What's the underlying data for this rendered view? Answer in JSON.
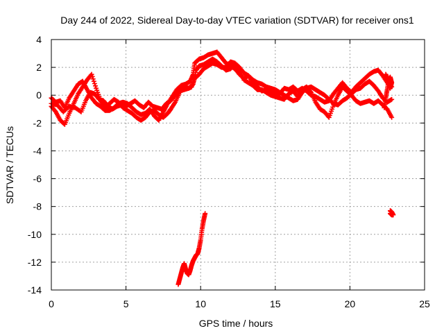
{
  "chart_data": {
    "type": "scatter",
    "title": "Day 244 of 2022, Sidereal Day-to-day VTEC variation (SDTVAR) for receiver ons1",
    "xlabel": "GPS time / hours",
    "ylabel": "SDTVAR / TECUs",
    "xlim": [
      0,
      25
    ],
    "ylim": [
      -14,
      4
    ],
    "xticks": [
      "0",
      "5",
      "10",
      "15",
      "20",
      "25"
    ],
    "yticks": [
      "4",
      "2",
      "0",
      "-2",
      "-4",
      "-6",
      "-8",
      "-10",
      "-12",
      "-14"
    ],
    "grid": true,
    "marker": "+",
    "series": [
      {
        "name": "SDTVAR",
        "color": "#ff0000",
        "segments": [
          [
            [
              0.0,
              -0.8
            ],
            [
              0.3,
              -1.2
            ],
            [
              0.6,
              -1.8
            ],
            [
              0.9,
              -2.1
            ],
            [
              1.2,
              -1.3
            ],
            [
              1.5,
              -0.6
            ],
            [
              1.8,
              0.1
            ],
            [
              2.1,
              0.6
            ],
            [
              2.4,
              1.1
            ],
            [
              2.7,
              1.5
            ],
            [
              3.0,
              0.5
            ],
            [
              3.3,
              -0.4
            ],
            [
              3.6,
              -0.9
            ],
            [
              3.9,
              -0.6
            ],
            [
              4.2,
              -0.3
            ],
            [
              4.5,
              -0.5
            ],
            [
              4.8,
              -0.9
            ],
            [
              5.1,
              -1.1
            ],
            [
              5.4,
              -1.3
            ],
            [
              5.7,
              -1.6
            ],
            [
              6.0,
              -1.8
            ],
            [
              6.3,
              -1.6
            ],
            [
              6.6,
              -1.2
            ],
            [
              6.9,
              -1.1
            ],
            [
              7.2,
              -1.4
            ],
            [
              7.5,
              -1.6
            ],
            [
              7.8,
              -1.3
            ],
            [
              8.0,
              -1.0
            ],
            [
              8.3,
              -0.5
            ],
            [
              8.6,
              0.2
            ],
            [
              8.9,
              0.6
            ],
            [
              9.2,
              0.5
            ],
            [
              9.5,
              0.8
            ],
            [
              9.7,
              1.8
            ],
            [
              9.9,
              2.1
            ],
            [
              10.2,
              2.2
            ],
            [
              10.5,
              2.4
            ],
            [
              10.8,
              2.6
            ],
            [
              11.1,
              2.4
            ],
            [
              11.4,
              2.1
            ],
            [
              11.7,
              1.8
            ],
            [
              12.0,
              1.9
            ],
            [
              12.3,
              2.2
            ],
            [
              12.6,
              1.8
            ],
            [
              12.9,
              1.1
            ],
            [
              13.2,
              0.9
            ],
            [
              13.5,
              0.7
            ],
            [
              13.8,
              0.4
            ],
            [
              14.1,
              0.4
            ],
            [
              14.4,
              0.2
            ],
            [
              14.7,
              0.0
            ],
            [
              15.0,
              -0.1
            ],
            [
              15.3,
              -0.2
            ],
            [
              15.6,
              -0.3
            ],
            [
              15.9,
              0.1
            ],
            [
              16.2,
              0.3
            ],
            [
              16.5,
              -0.1
            ],
            [
              16.8,
              0.4
            ],
            [
              17.1,
              0.6
            ],
            [
              17.4,
              0.2
            ],
            [
              17.7,
              -0.5
            ],
            [
              18.0,
              -1.0
            ],
            [
              18.3,
              -1.2
            ],
            [
              18.6,
              -1.6
            ],
            [
              18.9,
              -0.7
            ],
            [
              19.2,
              0.0
            ],
            [
              19.5,
              0.6
            ],
            [
              19.8,
              0.3
            ],
            [
              20.1,
              0.0
            ],
            [
              20.4,
              -0.4
            ],
            [
              20.7,
              -0.6
            ],
            [
              21.0,
              -0.5
            ],
            [
              21.3,
              -0.4
            ],
            [
              21.6,
              -0.6
            ],
            [
              21.9,
              -0.4
            ],
            [
              22.2,
              -0.7
            ],
            [
              22.5,
              -1.0
            ],
            [
              22.8,
              -1.6
            ]
          ],
          [
            [
              0.0,
              -0.2
            ],
            [
              0.3,
              -0.5
            ],
            [
              0.6,
              -0.4
            ],
            [
              0.9,
              -0.9
            ],
            [
              1.2,
              -0.2
            ],
            [
              1.5,
              0.3
            ],
            [
              1.8,
              0.8
            ],
            [
              2.1,
              1.0
            ],
            [
              2.4,
              0.4
            ],
            [
              2.7,
              -0.2
            ],
            [
              3.0,
              -0.6
            ],
            [
              3.3,
              -0.8
            ],
            [
              3.6,
              -1.1
            ],
            [
              3.9,
              -1.1
            ],
            [
              4.2,
              -0.9
            ],
            [
              4.5,
              -0.6
            ],
            [
              4.8,
              -0.5
            ],
            [
              5.1,
              -0.6
            ],
            [
              5.4,
              -0.9
            ],
            [
              5.7,
              -1.2
            ],
            [
              6.0,
              -1.4
            ],
            [
              6.3,
              -1.3
            ],
            [
              6.6,
              -1.0
            ],
            [
              6.9,
              -1.5
            ],
            [
              7.2,
              -1.8
            ],
            [
              7.5,
              -1.2
            ],
            [
              7.8,
              -0.6
            ],
            [
              8.1,
              -0.1
            ],
            [
              8.4,
              0.4
            ],
            [
              8.7,
              0.7
            ],
            [
              9.0,
              0.8
            ],
            [
              9.3,
              1.0
            ],
            [
              9.5,
              1.5
            ],
            [
              9.6,
              2.3
            ],
            [
              9.9,
              2.6
            ],
            [
              10.2,
              2.7
            ],
            [
              10.5,
              2.9
            ],
            [
              10.8,
              3.0
            ],
            [
              11.1,
              3.1
            ],
            [
              11.4,
              2.7
            ],
            [
              11.7,
              2.3
            ],
            [
              12.0,
              2.1
            ],
            [
              12.3,
              1.9
            ],
            [
              12.6,
              1.5
            ],
            [
              12.9,
              1.2
            ],
            [
              13.2,
              1.4
            ],
            [
              13.5,
              0.9
            ],
            [
              13.8,
              0.6
            ],
            [
              14.1,
              0.3
            ],
            [
              14.4,
              0.4
            ],
            [
              14.7,
              0.3
            ],
            [
              15.0,
              0.2
            ],
            [
              15.3,
              0.1
            ],
            [
              15.6,
              0.5
            ],
            [
              15.9,
              0.4
            ],
            [
              16.2,
              0.6
            ],
            [
              16.5,
              0.3
            ],
            [
              16.8,
              0.5
            ],
            [
              17.1,
              0.3
            ],
            [
              17.4,
              0.0
            ],
            [
              17.7,
              -0.1
            ],
            [
              18.0,
              -0.3
            ],
            [
              18.3,
              -0.5
            ],
            [
              18.6,
              -0.4
            ],
            [
              18.9,
              0.1
            ],
            [
              19.2,
              0.5
            ],
            [
              19.5,
              0.9
            ],
            [
              19.8,
              0.5
            ],
            [
              20.1,
              0.2
            ],
            [
              20.4,
              0.6
            ],
            [
              20.7,
              0.9
            ],
            [
              21.0,
              1.2
            ],
            [
              21.3,
              1.5
            ],
            [
              21.6,
              1.7
            ],
            [
              21.9,
              1.8
            ],
            [
              22.2,
              1.4
            ],
            [
              22.5,
              0.9
            ],
            [
              22.8,
              0.6
            ]
          ],
          [
            [
              0.0,
              -0.6
            ],
            [
              0.4,
              -0.7
            ],
            [
              0.8,
              -1.2
            ],
            [
              1.2,
              -0.8
            ],
            [
              1.6,
              -0.9
            ],
            [
              2.0,
              -1.2
            ],
            [
              2.3,
              -0.4
            ],
            [
              2.6,
              0.2
            ],
            [
              2.9,
              0.1
            ],
            [
              3.2,
              -0.3
            ],
            [
              3.5,
              -0.4
            ],
            [
              3.8,
              -0.8
            ],
            [
              4.1,
              -1.0
            ],
            [
              4.4,
              -0.8
            ],
            [
              4.7,
              -0.7
            ],
            [
              5.0,
              -0.8
            ],
            [
              5.3,
              -0.6
            ],
            [
              5.6,
              -0.4
            ],
            [
              5.9,
              -0.7
            ],
            [
              6.2,
              -0.9
            ],
            [
              6.5,
              -0.5
            ],
            [
              6.8,
              -0.8
            ],
            [
              7.1,
              -0.9
            ],
            [
              7.4,
              -1.0
            ],
            [
              7.7,
              -0.6
            ],
            [
              8.0,
              -0.4
            ],
            [
              8.3,
              0.0
            ],
            [
              8.6,
              0.3
            ],
            [
              8.9,
              0.4
            ],
            [
              9.2,
              0.5
            ],
            [
              9.4,
              0.6
            ],
            [
              9.6,
              1.2
            ],
            [
              9.9,
              1.5
            ],
            [
              10.2,
              1.9
            ],
            [
              10.5,
              2.1
            ],
            [
              10.8,
              2.3
            ],
            [
              11.1,
              2.2
            ],
            [
              11.4,
              2.0
            ],
            [
              11.7,
              2.0
            ],
            [
              12.0,
              2.4
            ],
            [
              12.3,
              2.3
            ],
            [
              12.6,
              2.0
            ],
            [
              12.9,
              1.6
            ],
            [
              13.2,
              1.4
            ],
            [
              13.5,
              1.1
            ],
            [
              13.8,
              0.9
            ],
            [
              14.1,
              0.8
            ],
            [
              14.4,
              0.6
            ],
            [
              14.7,
              0.5
            ],
            [
              15.0,
              0.4
            ],
            [
              15.3,
              0.2
            ],
            [
              15.6,
              0.0
            ],
            [
              15.9,
              -0.2
            ],
            [
              16.2,
              -0.4
            ],
            [
              16.5,
              -0.3
            ],
            [
              16.8,
              0.2
            ],
            [
              17.1,
              0.5
            ],
            [
              17.4,
              0.6
            ],
            [
              17.7,
              0.4
            ],
            [
              18.0,
              0.2
            ],
            [
              18.3,
              0.0
            ],
            [
              18.6,
              -0.3
            ],
            [
              18.9,
              -0.6
            ],
            [
              19.2,
              -0.7
            ],
            [
              19.5,
              -0.4
            ],
            [
              19.8,
              -0.2
            ],
            [
              20.1,
              0.1
            ],
            [
              20.4,
              0.4
            ],
            [
              20.7,
              0.5
            ],
            [
              21.0,
              0.8
            ],
            [
              21.3,
              1.0
            ],
            [
              21.6,
              0.7
            ],
            [
              21.9,
              0.3
            ],
            [
              22.2,
              -0.2
            ],
            [
              22.5,
              -0.5
            ],
            [
              22.8,
              -0.3
            ]
          ],
          [
            [
              22.4,
              1.5
            ],
            [
              22.5,
              1.2
            ],
            [
              22.6,
              0.8
            ],
            [
              22.7,
              0.5
            ],
            [
              22.8,
              0.9
            ],
            [
              22.7,
              1.3
            ],
            [
              22.6,
              1.1
            ],
            [
              22.5,
              0.4
            ],
            [
              22.4,
              -0.2
            ],
            [
              22.3,
              -0.9
            ]
          ],
          [
            [
              8.5,
              -13.6
            ],
            [
              8.6,
              -13.2
            ],
            [
              8.7,
              -12.8
            ],
            [
              8.8,
              -12.4
            ],
            [
              8.9,
              -12.1
            ],
            [
              9.0,
              -12.5
            ],
            [
              9.1,
              -12.8
            ],
            [
              9.2,
              -12.9
            ],
            [
              9.3,
              -12.6
            ],
            [
              9.4,
              -12.2
            ],
            [
              9.5,
              -11.9
            ],
            [
              9.6,
              -11.7
            ],
            [
              9.7,
              -11.5
            ],
            [
              9.8,
              -11.4
            ],
            [
              9.9,
              -11.0
            ],
            [
              10.0,
              -10.4
            ],
            [
              10.1,
              -9.6
            ],
            [
              10.2,
              -9.0
            ],
            [
              10.3,
              -8.5
            ]
          ],
          [
            [
              22.7,
              -8.3
            ],
            [
              22.8,
              -8.4
            ],
            [
              22.9,
              -8.6
            ],
            [
              22.8,
              -8.6
            ],
            [
              22.7,
              -8.5
            ]
          ]
        ]
      }
    ]
  }
}
